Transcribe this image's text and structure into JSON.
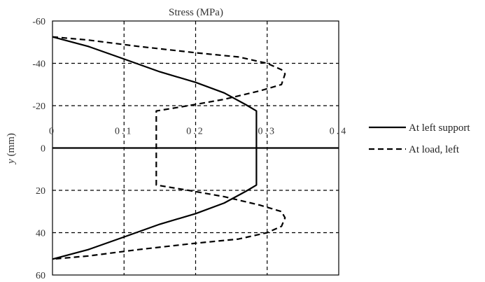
{
  "chart_data": {
    "type": "line",
    "title": "Stress (MPa)",
    "xlabel": "",
    "ylabel_italic": "y",
    "ylabel_unit": " (mm)",
    "xlim": [
      0,
      0.4
    ],
    "ylim": [
      -60,
      60
    ],
    "y_inverted": true,
    "xticks": [
      0,
      0.1,
      0.2,
      0.3,
      0.4
    ],
    "xtick_labels": [
      "0",
      "0.1",
      "0.2",
      "0.3",
      "0.4"
    ],
    "yticks": [
      -60,
      -40,
      -20,
      0,
      20,
      40,
      60
    ],
    "ytick_labels": [
      "-60",
      "-40",
      "-20",
      "0",
      "20",
      "40",
      "60"
    ],
    "grid": true,
    "legend_position": "right",
    "series": [
      {
        "name": "At left support",
        "style": "solid",
        "color": "#000000",
        "points": [
          [
            0,
            -52.5
          ],
          [
            0.05,
            -48
          ],
          [
            0.1,
            -42
          ],
          [
            0.15,
            -36
          ],
          [
            0.2,
            -31
          ],
          [
            0.24,
            -26
          ],
          [
            0.27,
            -20.5
          ],
          [
            0.285,
            -17.5
          ],
          [
            0.285,
            0
          ],
          [
            0.285,
            17.5
          ],
          [
            0.27,
            20.5
          ],
          [
            0.24,
            26
          ],
          [
            0.2,
            31
          ],
          [
            0.15,
            36
          ],
          [
            0.1,
            42
          ],
          [
            0.05,
            48
          ],
          [
            0,
            52.5
          ]
        ]
      },
      {
        "name": "At load, left",
        "style": "dashed",
        "color": "#000000",
        "points": [
          [
            0,
            -52.5
          ],
          [
            0.05,
            -51
          ],
          [
            0.12,
            -48
          ],
          [
            0.2,
            -45
          ],
          [
            0.26,
            -43
          ],
          [
            0.3,
            -40
          ],
          [
            0.32,
            -37
          ],
          [
            0.325,
            -35
          ],
          [
            0.32,
            -30
          ],
          [
            0.29,
            -27
          ],
          [
            0.24,
            -23
          ],
          [
            0.19,
            -20
          ],
          [
            0.145,
            -17.5
          ],
          [
            0.145,
            0
          ],
          [
            0.145,
            17.5
          ],
          [
            0.19,
            20
          ],
          [
            0.24,
            23
          ],
          [
            0.29,
            27
          ],
          [
            0.32,
            30
          ],
          [
            0.325,
            33
          ],
          [
            0.32,
            37
          ],
          [
            0.3,
            40
          ],
          [
            0.26,
            43
          ],
          [
            0.2,
            45
          ],
          [
            0.12,
            48
          ],
          [
            0.05,
            51
          ],
          [
            0,
            52.5
          ]
        ]
      }
    ]
  }
}
